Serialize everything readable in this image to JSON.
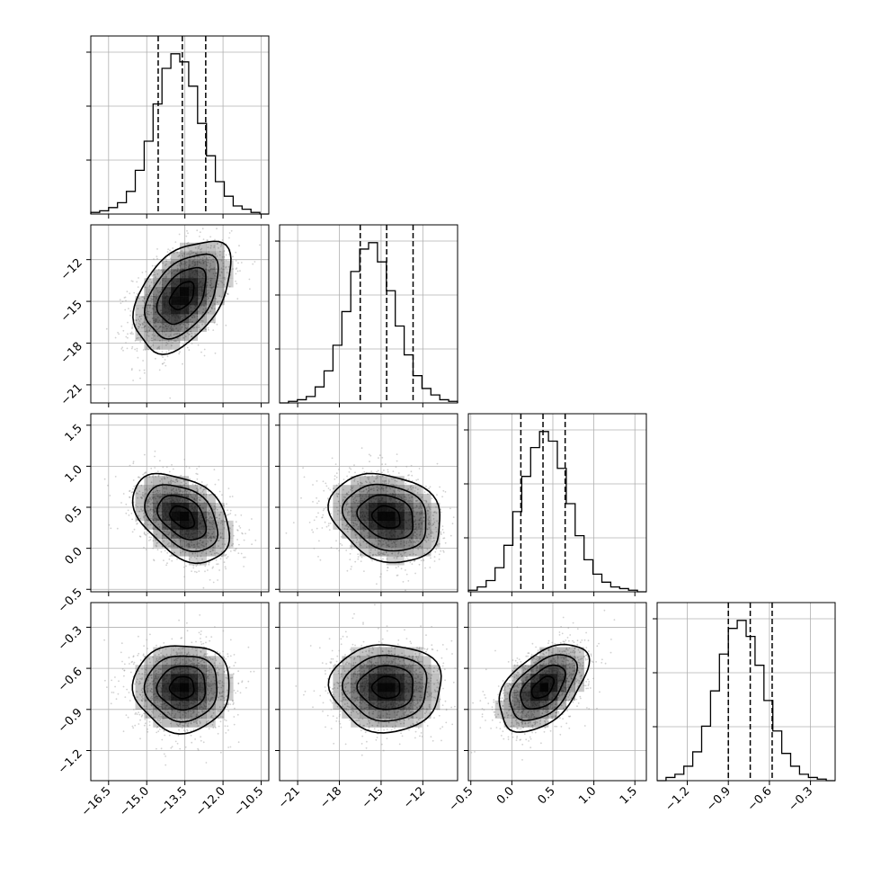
{
  "chart_data": {
    "type": "corner",
    "params": [
      {
        "mean": -13.6,
        "sd": 0.95,
        "lim": [
          -17.2,
          -10.2
        ],
        "q16": -14.55,
        "q50": -13.6,
        "q84": -12.68,
        "ticks": [
          -16.5,
          -15.0,
          -13.5,
          -12.0,
          -10.5
        ],
        "tick_labels": [
          "−16.5",
          "−15.0",
          "−13.5",
          "−12.0",
          "−10.5"
        ],
        "hist_counts": [
          1,
          2,
          4,
          7,
          14,
          27,
          45,
          68,
          90,
          99,
          94,
          79,
          56,
          36,
          20,
          11,
          5,
          3,
          1,
          0
        ]
      },
      {
        "mean": -14.6,
        "sd": 2.0,
        "lim": [
          -22.3,
          -9.5
        ],
        "q16": -16.5,
        "q50": -14.6,
        "q84": -12.7,
        "ticks": [
          -21,
          -18,
          -15,
          -12
        ],
        "tick_labels": [
          "−21",
          "−18",
          "−15",
          "−12"
        ],
        "hist_counts": [
          0,
          1,
          2,
          4,
          10,
          20,
          36,
          57,
          82,
          96,
          100,
          88,
          70,
          48,
          30,
          17,
          9,
          5,
          2,
          1
        ]
      },
      {
        "mean": 0.38,
        "sd": 0.27,
        "lim": [
          -0.53,
          1.64
        ],
        "q16": 0.11,
        "q50": 0.38,
        "q84": 0.65,
        "ticks": [
          -0.5,
          0.0,
          0.5,
          1.0,
          1.5
        ],
        "tick_labels": [
          "−0.5",
          "0.0",
          "0.5",
          "1.0",
          "1.5"
        ],
        "hist_counts": [
          1,
          3,
          7,
          15,
          29,
          50,
          72,
          90,
          100,
          94,
          77,
          55,
          35,
          20,
          11,
          6,
          3,
          2,
          1,
          0
        ]
      },
      {
        "mean": -0.74,
        "sd": 0.16,
        "lim": [
          -1.42,
          -0.12
        ],
        "q16": -0.9,
        "q50": -0.74,
        "q84": -0.58,
        "ticks": [
          -1.2,
          -0.9,
          -0.6,
          -0.3
        ],
        "tick_labels": [
          "−1.2",
          "−0.9",
          "−0.6",
          "−0.3"
        ],
        "hist_counts": [
          0,
          2,
          4,
          9,
          18,
          34,
          56,
          79,
          95,
          100,
          90,
          72,
          50,
          31,
          17,
          9,
          4,
          2,
          1,
          0
        ]
      }
    ],
    "correlations": [
      {
        "row": 1,
        "col": 0,
        "rho": 0.45
      },
      {
        "row": 2,
        "col": 0,
        "rho": -0.4
      },
      {
        "row": 2,
        "col": 1,
        "rho": -0.2
      },
      {
        "row": 3,
        "col": 0,
        "rho": 0.0
      },
      {
        "row": 3,
        "col": 1,
        "rho": 0.0
      },
      {
        "row": 3,
        "col": 2,
        "rho": 0.5
      }
    ],
    "contour_levels_sigma": [
      0.5,
      1.0,
      1.5,
      2.0
    ],
    "grid": true,
    "quantile_lines": "dashed",
    "colors": {
      "line": "#000000",
      "grid": "#b0b0b0",
      "points": "#9a9a9a",
      "density": "#000000"
    }
  }
}
